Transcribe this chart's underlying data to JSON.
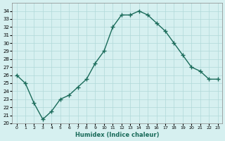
{
  "x": [
    0,
    1,
    2,
    3,
    4,
    5,
    6,
    7,
    8,
    9,
    10,
    11,
    12,
    13,
    14,
    15,
    16,
    17,
    18,
    19,
    20,
    21,
    22,
    23
  ],
  "y": [
    26,
    25,
    22.5,
    20.5,
    21.5,
    23,
    23.5,
    24.5,
    25.5,
    27.5,
    29,
    32,
    33.5,
    33.5,
    34,
    33.5,
    32.5,
    31.5,
    30,
    28.5,
    27,
    26.5,
    25.5,
    25.5
  ],
  "xlabel": "Humidex (Indice chaleur)",
  "ylim": [
    20,
    35
  ],
  "xlim": [
    -0.5,
    23.5
  ],
  "yticks": [
    20,
    21,
    22,
    23,
    24,
    25,
    26,
    27,
    28,
    29,
    30,
    31,
    32,
    33,
    34
  ],
  "xticks": [
    0,
    1,
    2,
    3,
    4,
    5,
    6,
    7,
    8,
    9,
    10,
    11,
    12,
    13,
    14,
    15,
    16,
    17,
    18,
    19,
    20,
    21,
    22,
    23
  ],
  "line_color": "#1a6b5a",
  "marker": "+",
  "bg_color": "#d6f0f0",
  "grid_color": "#b0d8d8"
}
